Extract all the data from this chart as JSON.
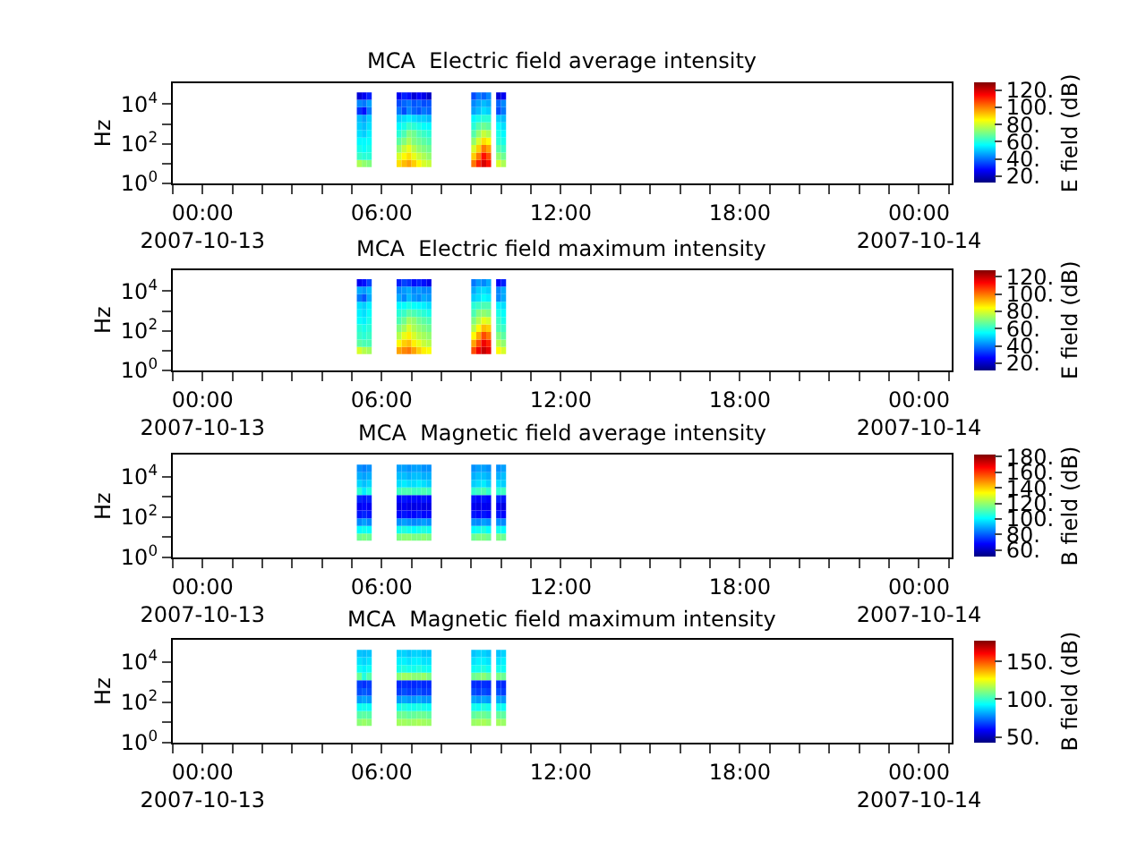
{
  "chart_data": [
    {
      "type": "heatmap",
      "title": "MCA  Electric field average intensity",
      "ylabel": "Hz",
      "clabel": "E field (dB)",
      "log": "y",
      "x": [
        "2007-10-13T05:15",
        "2007-10-13T05:25",
        "2007-10-13T05:35",
        "2007-10-13T05:45",
        "2007-10-13T05:55",
        "2007-10-13T06:05",
        "2007-10-13T06:15",
        "2007-10-13T06:25",
        "2007-10-13T06:35",
        "2007-10-13T06:45",
        "2007-10-13T06:55",
        "2007-10-13T07:05",
        "2007-10-13T07:15",
        "2007-10-13T07:25",
        "2007-10-13T07:35",
        "2007-10-13T07:45",
        "2007-10-13T07:55",
        "2007-10-13T08:05",
        "2007-10-13T08:15",
        "2007-10-13T08:25",
        "2007-10-13T08:35",
        "2007-10-13T08:45",
        "2007-10-13T08:55",
        "2007-10-13T09:05",
        "2007-10-13T09:15",
        "2007-10-13T09:25",
        "2007-10-13T09:35",
        "2007-10-13T09:45",
        "2007-10-13T09:55",
        "2007-10-13T10:05"
      ],
      "y": [
        10,
        23,
        56,
        135,
        320,
        780,
        1900,
        4500,
        11000,
        26000
      ],
      "cells": [
        [
          75,
          72,
          70,
          null,
          null,
          null,
          null,
          null,
          88,
          92,
          95,
          90,
          85,
          80,
          78,
          null,
          null,
          null,
          null,
          null,
          null,
          null,
          null,
          100,
          110,
          118,
          112,
          null,
          80,
          75
        ],
        [
          62,
          60,
          60,
          null,
          null,
          null,
          null,
          null,
          80,
          85,
          88,
          82,
          78,
          75,
          72,
          null,
          null,
          null,
          null,
          null,
          null,
          null,
          null,
          90,
          100,
          112,
          105,
          null,
          72,
          68
        ],
        [
          58,
          56,
          58,
          null,
          null,
          null,
          null,
          null,
          72,
          78,
          82,
          76,
          72,
          70,
          68,
          null,
          null,
          null,
          null,
          null,
          null,
          null,
          null,
          80,
          90,
          100,
          95,
          null,
          65,
          62
        ],
        [
          55,
          55,
          56,
          null,
          null,
          null,
          null,
          null,
          66,
          70,
          75,
          70,
          68,
          66,
          64,
          null,
          null,
          null,
          null,
          null,
          null,
          null,
          null,
          72,
          80,
          88,
          85,
          null,
          60,
          58
        ],
        [
          52,
          50,
          54,
          null,
          null,
          null,
          null,
          null,
          60,
          64,
          70,
          68,
          64,
          62,
          60,
          null,
          null,
          null,
          null,
          null,
          null,
          null,
          null,
          65,
          72,
          78,
          75,
          null,
          58,
          55
        ],
        [
          50,
          48,
          52,
          null,
          null,
          null,
          null,
          null,
          55,
          58,
          62,
          60,
          58,
          56,
          55,
          null,
          null,
          null,
          null,
          null,
          null,
          null,
          null,
          60,
          65,
          68,
          66,
          null,
          55,
          52
        ],
        [
          48,
          45,
          50,
          null,
          null,
          null,
          null,
          null,
          50,
          52,
          54,
          52,
          50,
          50,
          48,
          null,
          null,
          null,
          null,
          null,
          null,
          null,
          null,
          55,
          58,
          60,
          60,
          null,
          50,
          48
        ],
        [
          32,
          28,
          40,
          null,
          null,
          null,
          null,
          null,
          40,
          35,
          42,
          38,
          36,
          40,
          38,
          null,
          null,
          null,
          null,
          null,
          null,
          null,
          null,
          45,
          48,
          52,
          50,
          null,
          35,
          40
        ],
        [
          42,
          40,
          45,
          null,
          null,
          null,
          null,
          null,
          35,
          38,
          40,
          36,
          38,
          35,
          36,
          null,
          null,
          null,
          null,
          null,
          null,
          null,
          null,
          42,
          45,
          48,
          46,
          null,
          38,
          42
        ],
        [
          22,
          25,
          30,
          null,
          null,
          null,
          null,
          null,
          25,
          30,
          28,
          22,
          26,
          24,
          20,
          null,
          null,
          null,
          null,
          null,
          null,
          null,
          null,
          35,
          40,
          38,
          42,
          null,
          22,
          25
        ]
      ],
      "clim": [
        12,
        128
      ],
      "cticks": [
        {
          "value": 20,
          "label": "20."
        },
        {
          "value": 40,
          "label": "40."
        },
        {
          "value": 60,
          "label": "60."
        },
        {
          "value": 80,
          "label": "80."
        },
        {
          "value": 100,
          "label": "100."
        },
        {
          "value": 120,
          "label": "120."
        }
      ],
      "xlim": [
        "2007-10-12T23:00",
        "2007-10-14T01:05"
      ],
      "xticks": [
        {
          "value": "2007-10-12T23:00",
          "label": null
        },
        {
          "value": "2007-10-13T00:00",
          "label": "00:00\n2007-10-13"
        },
        {
          "value": "2007-10-13T01:00",
          "label": null
        },
        {
          "value": "2007-10-13T02:00",
          "label": null
        },
        {
          "value": "2007-10-13T03:00",
          "label": null
        },
        {
          "value": "2007-10-13T04:00",
          "label": null
        },
        {
          "value": "2007-10-13T05:00",
          "label": null
        },
        {
          "value": "2007-10-13T06:00",
          "label": "06:00"
        },
        {
          "value": "2007-10-13T07:00",
          "label": null
        },
        {
          "value": "2007-10-13T08:00",
          "label": null
        },
        {
          "value": "2007-10-13T09:00",
          "label": null
        },
        {
          "value": "2007-10-13T10:00",
          "label": null
        },
        {
          "value": "2007-10-13T11:00",
          "label": null
        },
        {
          "value": "2007-10-13T12:00",
          "label": "12:00"
        },
        {
          "value": "2007-10-13T13:00",
          "label": null
        },
        {
          "value": "2007-10-13T14:00",
          "label": null
        },
        {
          "value": "2007-10-13T15:00",
          "label": null
        },
        {
          "value": "2007-10-13T16:00",
          "label": null
        },
        {
          "value": "2007-10-13T17:00",
          "label": null
        },
        {
          "value": "2007-10-13T18:00",
          "label": "18:00"
        },
        {
          "value": "2007-10-13T19:00",
          "label": null
        },
        {
          "value": "2007-10-13T20:00",
          "label": null
        },
        {
          "value": "2007-10-13T21:00",
          "label": null
        },
        {
          "value": "2007-10-13T22:00",
          "label": null
        },
        {
          "value": "2007-10-13T23:00",
          "label": null
        },
        {
          "value": "2007-10-14T00:00",
          "label": "00:00\n2007-10-14"
        },
        {
          "value": "2007-10-14T01:00",
          "label": null
        }
      ],
      "ylim": [
        1,
        120000
      ],
      "yticks": [
        {
          "value": 1,
          "label": "10$^{0}$"
        },
        {
          "value": 10,
          "label": null
        },
        {
          "value": 100,
          "label": "10$^{2}$"
        },
        {
          "value": 1000,
          "label": null
        },
        {
          "value": 10000,
          "label": "10$^{4}$"
        }
      ]
    },
    {
      "type": "heatmap",
      "title": "MCA  Electric field maximum intensity",
      "ylabel": "Hz",
      "clabel": "E field (dB)",
      "log": "y",
      "x": [
        "2007-10-13T05:15",
        "2007-10-13T05:25",
        "2007-10-13T05:35",
        "2007-10-13T05:45",
        "2007-10-13T05:55",
        "2007-10-13T06:05",
        "2007-10-13T06:15",
        "2007-10-13T06:25",
        "2007-10-13T06:35",
        "2007-10-13T06:45",
        "2007-10-13T06:55",
        "2007-10-13T07:05",
        "2007-10-13T07:15",
        "2007-10-13T07:25",
        "2007-10-13T07:35",
        "2007-10-13T07:45",
        "2007-10-13T07:55",
        "2007-10-13T08:05",
        "2007-10-13T08:15",
        "2007-10-13T08:25",
        "2007-10-13T08:35",
        "2007-10-13T08:45",
        "2007-10-13T08:55",
        "2007-10-13T09:05",
        "2007-10-13T09:15",
        "2007-10-13T09:25",
        "2007-10-13T09:35",
        "2007-10-13T09:45",
        "2007-10-13T09:55",
        "2007-10-13T10:05"
      ],
      "y": [
        10,
        23,
        56,
        135,
        320,
        780,
        1900,
        4500,
        11000,
        26000
      ],
      "cells": [
        [
          80,
          76,
          74,
          null,
          null,
          null,
          null,
          null,
          95,
          98,
          100,
          95,
          90,
          86,
          84,
          null,
          null,
          null,
          null,
          null,
          null,
          null,
          null,
          105,
          115,
          120,
          116,
          null,
          85,
          80
        ],
        [
          66,
          64,
          64,
          null,
          null,
          null,
          null,
          null,
          85,
          90,
          92,
          86,
          82,
          78,
          76,
          null,
          null,
          null,
          null,
          null,
          null,
          null,
          null,
          95,
          105,
          115,
          110,
          null,
          76,
          72
        ],
        [
          62,
          60,
          62,
          null,
          null,
          null,
          null,
          null,
          76,
          82,
          86,
          80,
          76,
          74,
          72,
          null,
          null,
          null,
          null,
          null,
          null,
          null,
          null,
          85,
          95,
          105,
          100,
          null,
          70,
          66
        ],
        [
          60,
          58,
          60,
          null,
          null,
          null,
          null,
          null,
          70,
          74,
          80,
          75,
          72,
          70,
          68,
          null,
          null,
          null,
          null,
          null,
          null,
          null,
          null,
          76,
          85,
          92,
          90,
          null,
          64,
          62
        ],
        [
          56,
          54,
          58,
          null,
          null,
          null,
          null,
          null,
          64,
          68,
          74,
          72,
          68,
          66,
          64,
          null,
          null,
          null,
          null,
          null,
          null,
          null,
          null,
          70,
          76,
          82,
          80,
          null,
          62,
          58
        ],
        [
          54,
          52,
          56,
          null,
          null,
          null,
          null,
          null,
          60,
          62,
          66,
          64,
          62,
          60,
          58,
          null,
          null,
          null,
          null,
          null,
          null,
          null,
          null,
          64,
          70,
          72,
          70,
          null,
          58,
          56
        ],
        [
          52,
          50,
          54,
          null,
          null,
          null,
          null,
          null,
          55,
          56,
          58,
          56,
          55,
          54,
          52,
          null,
          null,
          null,
          null,
          null,
          null,
          null,
          null,
          60,
          62,
          64,
          64,
          null,
          54,
          52
        ],
        [
          40,
          36,
          46,
          null,
          null,
          null,
          null,
          null,
          46,
          42,
          48,
          44,
          42,
          46,
          44,
          null,
          null,
          null,
          null,
          null,
          null,
          null,
          null,
          50,
          52,
          56,
          54,
          null,
          42,
          46
        ],
        [
          46,
          44,
          48,
          null,
          null,
          null,
          null,
          null,
          42,
          44,
          46,
          42,
          44,
          42,
          42,
          null,
          null,
          null,
          null,
          null,
          null,
          null,
          null,
          46,
          50,
          52,
          50,
          null,
          42,
          46
        ],
        [
          25,
          28,
          34,
          null,
          null,
          null,
          null,
          null,
          30,
          34,
          32,
          28,
          30,
          28,
          24,
          null,
          null,
          null,
          null,
          null,
          null,
          null,
          null,
          40,
          44,
          42,
          46,
          null,
          26,
          30
        ]
      ],
      "clim": [
        12,
        128
      ],
      "cticks": [
        {
          "value": 20,
          "label": "20."
        },
        {
          "value": 40,
          "label": "40."
        },
        {
          "value": 60,
          "label": "60."
        },
        {
          "value": 80,
          "label": "80."
        },
        {
          "value": 100,
          "label": "100."
        },
        {
          "value": 120,
          "label": "120."
        }
      ],
      "xlim": [
        "2007-10-12T23:00",
        "2007-10-14T01:05"
      ],
      "xticks": [
        {
          "value": "2007-10-12T23:00",
          "label": null
        },
        {
          "value": "2007-10-13T00:00",
          "label": "00:00\n2007-10-13"
        },
        {
          "value": "2007-10-13T01:00",
          "label": null
        },
        {
          "value": "2007-10-13T02:00",
          "label": null
        },
        {
          "value": "2007-10-13T03:00",
          "label": null
        },
        {
          "value": "2007-10-13T04:00",
          "label": null
        },
        {
          "value": "2007-10-13T05:00",
          "label": null
        },
        {
          "value": "2007-10-13T06:00",
          "label": "06:00"
        },
        {
          "value": "2007-10-13T07:00",
          "label": null
        },
        {
          "value": "2007-10-13T08:00",
          "label": null
        },
        {
          "value": "2007-10-13T09:00",
          "label": null
        },
        {
          "value": "2007-10-13T10:00",
          "label": null
        },
        {
          "value": "2007-10-13T11:00",
          "label": null
        },
        {
          "value": "2007-10-13T12:00",
          "label": "12:00"
        },
        {
          "value": "2007-10-13T13:00",
          "label": null
        },
        {
          "value": "2007-10-13T14:00",
          "label": null
        },
        {
          "value": "2007-10-13T15:00",
          "label": null
        },
        {
          "value": "2007-10-13T16:00",
          "label": null
        },
        {
          "value": "2007-10-13T17:00",
          "label": null
        },
        {
          "value": "2007-10-13T18:00",
          "label": "18:00"
        },
        {
          "value": "2007-10-13T19:00",
          "label": null
        },
        {
          "value": "2007-10-13T20:00",
          "label": null
        },
        {
          "value": "2007-10-13T21:00",
          "label": null
        },
        {
          "value": "2007-10-13T22:00",
          "label": null
        },
        {
          "value": "2007-10-13T23:00",
          "label": null
        },
        {
          "value": "2007-10-14T00:00",
          "label": "00:00\n2007-10-14"
        },
        {
          "value": "2007-10-14T01:00",
          "label": null
        }
      ],
      "ylim": [
        1,
        120000
      ],
      "yticks": [
        {
          "value": 1,
          "label": "10$^{0}$"
        },
        {
          "value": 10,
          "label": null
        },
        {
          "value": 100,
          "label": "10$^{2}$"
        },
        {
          "value": 1000,
          "label": null
        },
        {
          "value": 10000,
          "label": "10$^{4}$"
        }
      ]
    },
    {
      "type": "heatmap",
      "title": "MCA  Magnetic field average intensity",
      "ylabel": "Hz",
      "clabel": "B field (dB)",
      "log": "y",
      "x": [
        "2007-10-13T05:15",
        "2007-10-13T05:25",
        "2007-10-13T05:35",
        "2007-10-13T05:45",
        "2007-10-13T05:55",
        "2007-10-13T06:05",
        "2007-10-13T06:15",
        "2007-10-13T06:25",
        "2007-10-13T06:35",
        "2007-10-13T06:45",
        "2007-10-13T06:55",
        "2007-10-13T07:05",
        "2007-10-13T07:15",
        "2007-10-13T07:25",
        "2007-10-13T07:35",
        "2007-10-13T07:45",
        "2007-10-13T07:55",
        "2007-10-13T08:05",
        "2007-10-13T08:15",
        "2007-10-13T08:25",
        "2007-10-13T08:35",
        "2007-10-13T08:45",
        "2007-10-13T08:55",
        "2007-10-13T09:05",
        "2007-10-13T09:15",
        "2007-10-13T09:25",
        "2007-10-13T09:35",
        "2007-10-13T09:45",
        "2007-10-13T09:55",
        "2007-10-13T10:05"
      ],
      "y": [
        10,
        23,
        56,
        135,
        320,
        780,
        1900,
        4500,
        11000,
        26000
      ],
      "cells": [
        [
          114,
          116,
          114,
          null,
          null,
          null,
          null,
          null,
          116,
          118,
          118,
          116,
          116,
          118,
          116,
          null,
          null,
          null,
          null,
          null,
          null,
          null,
          null,
          114,
          116,
          116,
          114,
          null,
          116,
          114
        ],
        [
          100,
          102,
          100,
          null,
          null,
          null,
          null,
          null,
          102,
          104,
          102,
          100,
          102,
          104,
          102,
          null,
          null,
          null,
          null,
          null,
          null,
          null,
          null,
          100,
          102,
          104,
          100,
          null,
          102,
          100
        ],
        [
          85,
          88,
          85,
          null,
          null,
          null,
          null,
          null,
          86,
          88,
          86,
          85,
          86,
          88,
          86,
          null,
          null,
          null,
          null,
          null,
          null,
          null,
          null,
          86,
          85,
          88,
          86,
          null,
          86,
          85
        ],
        [
          70,
          72,
          70,
          null,
          null,
          null,
          null,
          null,
          68,
          70,
          68,
          68,
          70,
          68,
          68,
          null,
          null,
          null,
          null,
          null,
          null,
          null,
          null,
          70,
          68,
          70,
          68,
          null,
          70,
          68
        ],
        [
          66,
          68,
          66,
          null,
          null,
          null,
          null,
          null,
          64,
          66,
          64,
          64,
          65,
          64,
          64,
          null,
          null,
          null,
          null,
          null,
          null,
          null,
          null,
          66,
          64,
          66,
          65,
          null,
          66,
          64
        ],
        [
          72,
          70,
          72,
          null,
          null,
          null,
          null,
          null,
          68,
          70,
          68,
          69,
          68,
          70,
          68,
          null,
          null,
          null,
          null,
          null,
          null,
          null,
          null,
          70,
          68,
          70,
          68,
          null,
          72,
          70
        ],
        [
          106,
          98,
          104,
          null,
          null,
          null,
          null,
          null,
          108,
          110,
          110,
          108,
          108,
          110,
          108,
          null,
          null,
          null,
          null,
          null,
          null,
          null,
          null,
          106,
          108,
          110,
          106,
          null,
          106,
          108
        ],
        [
          95,
          92,
          95,
          null,
          null,
          null,
          null,
          null,
          96,
          98,
          96,
          96,
          98,
          96,
          94,
          null,
          null,
          null,
          null,
          null,
          null,
          null,
          null,
          94,
          96,
          98,
          94,
          null,
          96,
          94
        ],
        [
          90,
          88,
          90,
          null,
          null,
          null,
          null,
          null,
          92,
          92,
          90,
          92,
          92,
          90,
          90,
          null,
          null,
          null,
          null,
          null,
          null,
          null,
          null,
          90,
          92,
          92,
          90,
          null,
          90,
          92
        ],
        [
          86,
          84,
          86,
          null,
          null,
          null,
          null,
          null,
          88,
          88,
          86,
          88,
          88,
          86,
          86,
          null,
          null,
          null,
          null,
          null,
          null,
          null,
          null,
          86,
          88,
          88,
          86,
          null,
          86,
          88
        ]
      ],
      "clim": [
        51,
        182
      ],
      "cticks": [
        {
          "value": 60,
          "label": "60."
        },
        {
          "value": 80,
          "label": "80."
        },
        {
          "value": 100,
          "label": "100."
        },
        {
          "value": 120,
          "label": "120."
        },
        {
          "value": 140,
          "label": "140."
        },
        {
          "value": 160,
          "label": "160."
        },
        {
          "value": 180,
          "label": "180."
        }
      ],
      "xlim": [
        "2007-10-12T23:00",
        "2007-10-14T01:05"
      ],
      "xticks": [
        {
          "value": "2007-10-12T23:00",
          "label": null
        },
        {
          "value": "2007-10-13T00:00",
          "label": "00:00\n2007-10-13"
        },
        {
          "value": "2007-10-13T01:00",
          "label": null
        },
        {
          "value": "2007-10-13T02:00",
          "label": null
        },
        {
          "value": "2007-10-13T03:00",
          "label": null
        },
        {
          "value": "2007-10-13T04:00",
          "label": null
        },
        {
          "value": "2007-10-13T05:00",
          "label": null
        },
        {
          "value": "2007-10-13T06:00",
          "label": "06:00"
        },
        {
          "value": "2007-10-13T07:00",
          "label": null
        },
        {
          "value": "2007-10-13T08:00",
          "label": null
        },
        {
          "value": "2007-10-13T09:00",
          "label": null
        },
        {
          "value": "2007-10-13T10:00",
          "label": null
        },
        {
          "value": "2007-10-13T11:00",
          "label": null
        },
        {
          "value": "2007-10-13T12:00",
          "label": "12:00"
        },
        {
          "value": "2007-10-13T13:00",
          "label": null
        },
        {
          "value": "2007-10-13T14:00",
          "label": null
        },
        {
          "value": "2007-10-13T15:00",
          "label": null
        },
        {
          "value": "2007-10-13T16:00",
          "label": null
        },
        {
          "value": "2007-10-13T17:00",
          "label": null
        },
        {
          "value": "2007-10-13T18:00",
          "label": "18:00"
        },
        {
          "value": "2007-10-13T19:00",
          "label": null
        },
        {
          "value": "2007-10-13T20:00",
          "label": null
        },
        {
          "value": "2007-10-13T21:00",
          "label": null
        },
        {
          "value": "2007-10-13T22:00",
          "label": null
        },
        {
          "value": "2007-10-13T23:00",
          "label": null
        },
        {
          "value": "2007-10-14T00:00",
          "label": "00:00\n2007-10-14"
        },
        {
          "value": "2007-10-14T01:00",
          "label": null
        }
      ],
      "ylim": [
        1,
        120000
      ],
      "yticks": [
        {
          "value": 1,
          "label": "10$^{0}$"
        },
        {
          "value": 10,
          "label": null
        },
        {
          "value": 100,
          "label": "10$^{2}$"
        },
        {
          "value": 1000,
          "label": null
        },
        {
          "value": 10000,
          "label": "10$^{4}$"
        }
      ]
    },
    {
      "type": "heatmap",
      "title": "MCA  Magnetic field maximum intensity",
      "ylabel": "Hz",
      "clabel": "B field (dB)",
      "log": "y",
      "x": [
        "2007-10-13T05:15",
        "2007-10-13T05:25",
        "2007-10-13T05:35",
        "2007-10-13T05:45",
        "2007-10-13T05:55",
        "2007-10-13T06:05",
        "2007-10-13T06:15",
        "2007-10-13T06:25",
        "2007-10-13T06:35",
        "2007-10-13T06:45",
        "2007-10-13T06:55",
        "2007-10-13T07:05",
        "2007-10-13T07:15",
        "2007-10-13T07:25",
        "2007-10-13T07:35",
        "2007-10-13T07:45",
        "2007-10-13T07:55",
        "2007-10-13T08:05",
        "2007-10-13T08:15",
        "2007-10-13T08:25",
        "2007-10-13T08:35",
        "2007-10-13T08:45",
        "2007-10-13T08:55",
        "2007-10-13T09:05",
        "2007-10-13T09:15",
        "2007-10-13T09:25",
        "2007-10-13T09:35",
        "2007-10-13T09:45",
        "2007-10-13T09:55",
        "2007-10-13T10:05"
      ],
      "y": [
        10,
        23,
        56,
        135,
        320,
        780,
        1900,
        4500,
        11000,
        26000
      ],
      "cells": [
        [
          112,
          114,
          112,
          null,
          null,
          null,
          null,
          null,
          115,
          115,
          114,
          115,
          116,
          115,
          114,
          null,
          null,
          null,
          null,
          null,
          null,
          null,
          null,
          114,
          115,
          116,
          114,
          null,
          115,
          114
        ],
        [
          105,
          106,
          105,
          null,
          null,
          null,
          null,
          null,
          108,
          108,
          106,
          107,
          108,
          108,
          106,
          null,
          null,
          null,
          null,
          null,
          null,
          null,
          null,
          106,
          108,
          108,
          106,
          null,
          107,
          106
        ],
        [
          95,
          96,
          95,
          null,
          null,
          null,
          null,
          null,
          96,
          98,
          96,
          96,
          97,
          96,
          95,
          null,
          null,
          null,
          null,
          null,
          null,
          null,
          null,
          96,
          95,
          98,
          96,
          null,
          96,
          95
        ],
        [
          80,
          82,
          80,
          null,
          null,
          null,
          null,
          null,
          80,
          82,
          80,
          80,
          82,
          80,
          80,
          null,
          null,
          null,
          null,
          null,
          null,
          null,
          null,
          82,
          80,
          82,
          80,
          null,
          82,
          80
        ],
        [
          70,
          72,
          70,
          null,
          null,
          null,
          null,
          null,
          68,
          70,
          68,
          68,
          70,
          68,
          68,
          null,
          null,
          null,
          null,
          null,
          null,
          null,
          null,
          70,
          68,
          70,
          68,
          null,
          70,
          68
        ],
        [
          68,
          66,
          68,
          null,
          null,
          null,
          null,
          null,
          65,
          66,
          65,
          65,
          66,
          65,
          65,
          null,
          null,
          null,
          null,
          null,
          null,
          null,
          null,
          66,
          65,
          66,
          65,
          null,
          66,
          65
        ],
        [
          108,
          98,
          105,
          null,
          null,
          null,
          null,
          null,
          112,
          115,
          114,
          112,
          112,
          114,
          110,
          null,
          null,
          null,
          null,
          null,
          null,
          null,
          null,
          108,
          110,
          112,
          108,
          null,
          110,
          108
        ],
        [
          95,
          92,
          95,
          null,
          null,
          null,
          null,
          null,
          96,
          98,
          96,
          96,
          98,
          96,
          95,
          null,
          null,
          null,
          null,
          null,
          null,
          null,
          null,
          95,
          96,
          98,
          95,
          null,
          96,
          95
        ],
        [
          90,
          88,
          90,
          null,
          null,
          null,
          null,
          null,
          92,
          92,
          90,
          92,
          92,
          90,
          90,
          null,
          null,
          null,
          null,
          null,
          null,
          null,
          null,
          90,
          92,
          92,
          90,
          null,
          90,
          92
        ],
        [
          86,
          85,
          86,
          null,
          null,
          null,
          null,
          null,
          88,
          88,
          86,
          88,
          88,
          86,
          86,
          null,
          null,
          null,
          null,
          null,
          null,
          null,
          null,
          86,
          88,
          88,
          86,
          null,
          86,
          88
        ]
      ],
      "clim": [
        43,
        178
      ],
      "cticks": [
        {
          "value": 50,
          "label": "50."
        },
        {
          "value": 100,
          "label": "100."
        },
        {
          "value": 150,
          "label": "150."
        }
      ],
      "xlim": [
        "2007-10-12T23:00",
        "2007-10-14T01:05"
      ],
      "xticks": [
        {
          "value": "2007-10-12T23:00",
          "label": null
        },
        {
          "value": "2007-10-13T00:00",
          "label": "00:00\n2007-10-13"
        },
        {
          "value": "2007-10-13T01:00",
          "label": null
        },
        {
          "value": "2007-10-13T02:00",
          "label": null
        },
        {
          "value": "2007-10-13T03:00",
          "label": null
        },
        {
          "value": "2007-10-13T04:00",
          "label": null
        },
        {
          "value": "2007-10-13T05:00",
          "label": null
        },
        {
          "value": "2007-10-13T06:00",
          "label": "06:00"
        },
        {
          "value": "2007-10-13T07:00",
          "label": null
        },
        {
          "value": "2007-10-13T08:00",
          "label": null
        },
        {
          "value": "2007-10-13T09:00",
          "label": null
        },
        {
          "value": "2007-10-13T10:00",
          "label": null
        },
        {
          "value": "2007-10-13T11:00",
          "label": null
        },
        {
          "value": "2007-10-13T12:00",
          "label": "12:00"
        },
        {
          "value": "2007-10-13T13:00",
          "label": null
        },
        {
          "value": "2007-10-13T14:00",
          "label": null
        },
        {
          "value": "2007-10-13T15:00",
          "label": null
        },
        {
          "value": "2007-10-13T16:00",
          "label": null
        },
        {
          "value": "2007-10-13T17:00",
          "label": null
        },
        {
          "value": "2007-10-13T18:00",
          "label": "18:00"
        },
        {
          "value": "2007-10-13T19:00",
          "label": null
        },
        {
          "value": "2007-10-13T20:00",
          "label": null
        },
        {
          "value": "2007-10-13T21:00",
          "label": null
        },
        {
          "value": "2007-10-13T22:00",
          "label": null
        },
        {
          "value": "2007-10-13T23:00",
          "label": null
        },
        {
          "value": "2007-10-14T00:00",
          "label": "00:00\n2007-10-14"
        },
        {
          "value": "2007-10-14T01:00",
          "label": null
        }
      ],
      "ylim": [
        1,
        120000
      ],
      "yticks": [
        {
          "value": 1,
          "label": "10$^{0}$"
        },
        {
          "value": 10,
          "label": null
        },
        {
          "value": 100,
          "label": "10$^{2}$"
        },
        {
          "value": 1000,
          "label": null
        },
        {
          "value": 10000,
          "label": "10$^{4}$"
        }
      ]
    }
  ]
}
